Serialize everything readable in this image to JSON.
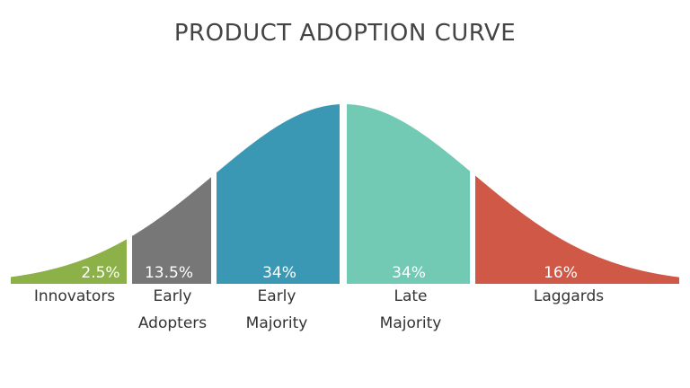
{
  "chart_data": {
    "type": "area",
    "title": "PRODUCT ADOPTION CURVE",
    "segments": [
      {
        "value": "2.5%",
        "label_lines": [
          "Innovators"
        ],
        "color": "#8CB148"
      },
      {
        "value": "13.5%",
        "label_lines": [
          "Early",
          "Adopters"
        ],
        "color": "#777777"
      },
      {
        "value": "34%",
        "label_lines": [
          "Early",
          "Majority"
        ],
        "color": "#3A98B4"
      },
      {
        "value": "34%",
        "label_lines": [
          "Late",
          "Majority"
        ],
        "color": "#72C9B4"
      },
      {
        "value": "16%",
        "label_lines": [
          "Laggards"
        ],
        "color": "#CF5847"
      }
    ]
  }
}
